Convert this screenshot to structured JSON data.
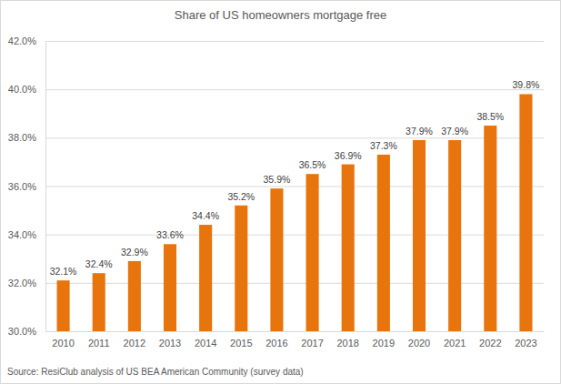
{
  "chart_data": {
    "type": "bar",
    "title": "Share of US homeowners mortgage free",
    "categories": [
      "2010",
      "2011",
      "2012",
      "2013",
      "2014",
      "2015",
      "2016",
      "2017",
      "2018",
      "2019",
      "2020",
      "2021",
      "2022",
      "2023"
    ],
    "values": [
      32.1,
      32.4,
      32.9,
      33.6,
      34.4,
      35.2,
      35.9,
      36.5,
      36.9,
      37.3,
      37.9,
      37.9,
      38.5,
      39.8
    ],
    "value_labels": [
      "32.1%",
      "32.4%",
      "32.9%",
      "33.6%",
      "34.4%",
      "35.2%",
      "35.9%",
      "36.5%",
      "36.9%",
      "37.3%",
      "37.9%",
      "37.9%",
      "38.5%",
      "39.8%"
    ],
    "color": "#e8740e",
    "ylim": [
      30,
      42
    ],
    "yticks": [
      {
        "value": 30,
        "label": "30.0%"
      },
      {
        "value": 32,
        "label": "32.0%"
      },
      {
        "value": 34,
        "label": "34.0%"
      },
      {
        "value": 36,
        "label": "36.0%"
      },
      {
        "value": 38,
        "label": "38.0%"
      },
      {
        "value": 40,
        "label": "40.0%"
      },
      {
        "value": 42,
        "label": "42.0%"
      }
    ],
    "grid": true,
    "data_labels": true,
    "source": "Source: ResiClub analysis of US BEA American Community (survey data)"
  }
}
